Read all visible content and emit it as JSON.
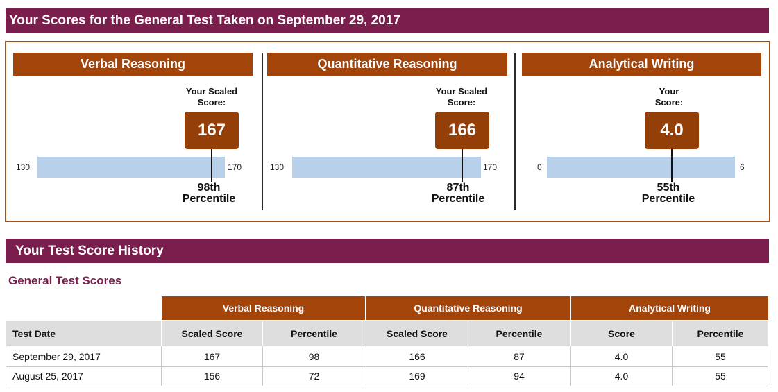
{
  "summary": {
    "title": "Your Scores for the General Test Taken on September 29, 2017",
    "panels": [
      {
        "title": "Verbal Reasoning",
        "caption_line1": "Your Scaled",
        "caption_line2": "Score:",
        "score": "167",
        "score_value": 167,
        "min": "130",
        "max": "170",
        "percentile": "98th",
        "percentile_word": "Percentile"
      },
      {
        "title": "Quantitative Reasoning",
        "caption_line1": "Your Scaled",
        "caption_line2": "Score:",
        "score": "166",
        "score_value": 166,
        "min": "130",
        "max": "170",
        "percentile": "87th",
        "percentile_word": "Percentile"
      },
      {
        "title": "Analytical Writing",
        "caption_line1": "Your",
        "caption_line2": "Score:",
        "score": "4.0",
        "score_value": 4.0,
        "min": "0",
        "max": "6",
        "percentile": "55th",
        "percentile_word": "Percentile"
      }
    ]
  },
  "history": {
    "title": "Your Test Score History",
    "subtitle": "General Test Scores",
    "groups": [
      "Verbal Reasoning",
      "Quantitative Reasoning",
      "Analytical Writing"
    ],
    "columns": [
      "Test Date",
      "Scaled Score",
      "Percentile",
      "Scaled Score",
      "Percentile",
      "Score",
      "Percentile"
    ],
    "rows": [
      [
        "September 29, 2017",
        "167",
        "98",
        "166",
        "87",
        "4.0",
        "55"
      ],
      [
        "August 25, 2017",
        "156",
        "72",
        "169",
        "94",
        "4.0",
        "55"
      ]
    ]
  },
  "colors": {
    "banner": "#7a1f4d",
    "section_header": "#a3440b",
    "score_box": "#943e08",
    "bar": "#b8d0e9",
    "subtitle": "#7a1f4d"
  }
}
